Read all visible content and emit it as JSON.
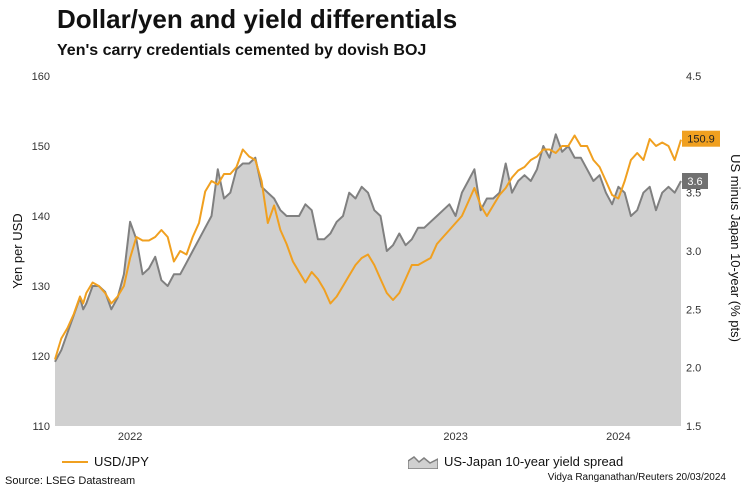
{
  "header": {
    "title": "Dollar/yen and yield differentials",
    "subtitle": "Yen's carry credentials cemented by dovish BOJ"
  },
  "footer": {
    "source": "Source: LSEG Datastream",
    "credit": "Vidya Ranganathan/Reuters 20/03/2024"
  },
  "colors": {
    "usdjpy": "#f0a020",
    "spread_line": "#808080",
    "spread_fill": "#d0d0d0",
    "spread_label_bg": "#707070"
  },
  "chart_data": {
    "type": "line",
    "title": "Dollar/yen and yield differentials",
    "subtitle": "Yen's carry credentials cemented by dovish BOJ",
    "x_axis": {
      "ticks": [
        "2022",
        "2023",
        "2024"
      ],
      "tick_t": [
        12,
        64,
        90
      ]
    },
    "y_left": {
      "label": "Yen per USD",
      "min": 110,
      "max": 160,
      "ticks": [
        110,
        120,
        130,
        140,
        150,
        160
      ]
    },
    "y_right": {
      "label": "US minus Japan 10-year (% pts)",
      "min": 1.5,
      "max": 4.5,
      "ticks": [
        "1.5",
        "2.0",
        "2.5",
        "3.0",
        "3.5",
        "4.0",
        "4.5"
      ]
    },
    "series": [
      {
        "name": "USD/JPY",
        "axis": "left",
        "style": "line",
        "end_label": "150.9",
        "points": [
          [
            0,
            119.5
          ],
          [
            0.5,
            121
          ],
          [
            1,
            122.5
          ],
          [
            2,
            124
          ],
          [
            3,
            126
          ],
          [
            4,
            128.5
          ],
          [
            4.5,
            127.5
          ],
          [
            5,
            129
          ],
          [
            6,
            130.5
          ],
          [
            7,
            130
          ],
          [
            8,
            129
          ],
          [
            9,
            127.5
          ],
          [
            10,
            128.5
          ],
          [
            11,
            130
          ],
          [
            12,
            134
          ],
          [
            13,
            137
          ],
          [
            14,
            136.5
          ],
          [
            15,
            136.5
          ],
          [
            16,
            137
          ],
          [
            17,
            138
          ],
          [
            18,
            137
          ],
          [
            19,
            133.5
          ],
          [
            20,
            135
          ],
          [
            21,
            134.5
          ],
          [
            22,
            137
          ],
          [
            23,
            139
          ],
          [
            24,
            143.5
          ],
          [
            25,
            145
          ],
          [
            26,
            144.5
          ],
          [
            27,
            146
          ],
          [
            28,
            146
          ],
          [
            29,
            147
          ],
          [
            30,
            149.5
          ],
          [
            31,
            148.5
          ],
          [
            32,
            148
          ],
          [
            33,
            145
          ],
          [
            34,
            139
          ],
          [
            35,
            141.5
          ],
          [
            36,
            138
          ],
          [
            37,
            136
          ],
          [
            38,
            133.5
          ],
          [
            39,
            132
          ],
          [
            40,
            130.5
          ],
          [
            41,
            132
          ],
          [
            42,
            131
          ],
          [
            43,
            129.5
          ],
          [
            44,
            127.5
          ],
          [
            45,
            128.5
          ],
          [
            46,
            130
          ],
          [
            47,
            131.5
          ],
          [
            48,
            133
          ],
          [
            49,
            134
          ],
          [
            50,
            134.5
          ],
          [
            51,
            133
          ],
          [
            52,
            131
          ],
          [
            53,
            129
          ],
          [
            54,
            128
          ],
          [
            55,
            129
          ],
          [
            56,
            131
          ],
          [
            57,
            133
          ],
          [
            58,
            133
          ],
          [
            59,
            133.5
          ],
          [
            60,
            134
          ],
          [
            61,
            136
          ],
          [
            62,
            137
          ],
          [
            63,
            138
          ],
          [
            64,
            139
          ],
          [
            65,
            140
          ],
          [
            66,
            142
          ],
          [
            67,
            144
          ],
          [
            68,
            141.5
          ],
          [
            69,
            140
          ],
          [
            70,
            141.5
          ],
          [
            71,
            143
          ],
          [
            72,
            144
          ],
          [
            73,
            145.5
          ],
          [
            74,
            146.5
          ],
          [
            75,
            147
          ],
          [
            76,
            148
          ],
          [
            77,
            148.5
          ],
          [
            78,
            149.5
          ],
          [
            79,
            149.5
          ],
          [
            80,
            149
          ],
          [
            81,
            150
          ],
          [
            82,
            150
          ],
          [
            83,
            151.5
          ],
          [
            84,
            150
          ],
          [
            85,
            150
          ],
          [
            86,
            148
          ],
          [
            87,
            147
          ],
          [
            88,
            145
          ],
          [
            89,
            143
          ],
          [
            90,
            142.5
          ],
          [
            91,
            145
          ],
          [
            92,
            148
          ],
          [
            93,
            149
          ],
          [
            94,
            148
          ],
          [
            95,
            151
          ],
          [
            96,
            150
          ],
          [
            97,
            150.5
          ],
          [
            98,
            150
          ],
          [
            99,
            148
          ],
          [
            100,
            150.9
          ]
        ]
      },
      {
        "name": "US-Japan 10-year yield spread",
        "axis": "right",
        "style": "area",
        "end_label": "3.6",
        "points": [
          [
            0,
            2.05
          ],
          [
            0.5,
            2.1
          ],
          [
            1,
            2.15
          ],
          [
            2,
            2.3
          ],
          [
            3,
            2.45
          ],
          [
            4,
            2.6
          ],
          [
            4.5,
            2.5
          ],
          [
            5,
            2.55
          ],
          [
            6,
            2.7
          ],
          [
            7,
            2.7
          ],
          [
            8,
            2.65
          ],
          [
            9,
            2.5
          ],
          [
            10,
            2.6
          ],
          [
            11,
            2.8
          ],
          [
            12,
            3.25
          ],
          [
            13,
            3.1
          ],
          [
            14,
            2.8
          ],
          [
            15,
            2.85
          ],
          [
            16,
            2.95
          ],
          [
            17,
            2.75
          ],
          [
            18,
            2.7
          ],
          [
            19,
            2.8
          ],
          [
            20,
            2.8
          ],
          [
            21,
            2.9
          ],
          [
            22,
            3.0
          ],
          [
            23,
            3.1
          ],
          [
            24,
            3.2
          ],
          [
            25,
            3.3
          ],
          [
            26,
            3.7
          ],
          [
            27,
            3.45
          ],
          [
            28,
            3.5
          ],
          [
            29,
            3.7
          ],
          [
            30,
            3.75
          ],
          [
            31,
            3.75
          ],
          [
            32,
            3.8
          ],
          [
            33,
            3.55
          ],
          [
            34,
            3.5
          ],
          [
            35,
            3.45
          ],
          [
            36,
            3.35
          ],
          [
            37,
            3.3
          ],
          [
            38,
            3.3
          ],
          [
            39,
            3.3
          ],
          [
            40,
            3.4
          ],
          [
            41,
            3.35
          ],
          [
            42,
            3.1
          ],
          [
            43,
            3.1
          ],
          [
            44,
            3.15
          ],
          [
            45,
            3.25
          ],
          [
            46,
            3.3
          ],
          [
            47,
            3.5
          ],
          [
            48,
            3.45
          ],
          [
            49,
            3.55
          ],
          [
            50,
            3.5
          ],
          [
            51,
            3.35
          ],
          [
            52,
            3.3
          ],
          [
            53,
            3.0
          ],
          [
            54,
            3.05
          ],
          [
            55,
            3.15
          ],
          [
            56,
            3.05
          ],
          [
            57,
            3.1
          ],
          [
            58,
            3.2
          ],
          [
            59,
            3.2
          ],
          [
            60,
            3.25
          ],
          [
            61,
            3.3
          ],
          [
            62,
            3.35
          ],
          [
            63,
            3.4
          ],
          [
            64,
            3.3
          ],
          [
            65,
            3.5
          ],
          [
            66,
            3.6
          ],
          [
            67,
            3.7
          ],
          [
            68,
            3.35
          ],
          [
            69,
            3.45
          ],
          [
            70,
            3.45
          ],
          [
            71,
            3.5
          ],
          [
            72,
            3.75
          ],
          [
            73,
            3.5
          ],
          [
            74,
            3.6
          ],
          [
            75,
            3.65
          ],
          [
            76,
            3.6
          ],
          [
            77,
            3.7
          ],
          [
            78,
            3.9
          ],
          [
            79,
            3.8
          ],
          [
            80,
            4.0
          ],
          [
            81,
            3.85
          ],
          [
            82,
            3.9
          ],
          [
            83,
            3.8
          ],
          [
            84,
            3.8
          ],
          [
            85,
            3.7
          ],
          [
            86,
            3.6
          ],
          [
            87,
            3.65
          ],
          [
            88,
            3.5
          ],
          [
            89,
            3.4
          ],
          [
            90,
            3.55
          ],
          [
            91,
            3.5
          ],
          [
            92,
            3.3
          ],
          [
            93,
            3.35
          ],
          [
            94,
            3.5
          ],
          [
            95,
            3.55
          ],
          [
            96,
            3.35
          ],
          [
            97,
            3.5
          ],
          [
            98,
            3.55
          ],
          [
            99,
            3.5
          ],
          [
            100,
            3.6
          ]
        ]
      }
    ]
  }
}
